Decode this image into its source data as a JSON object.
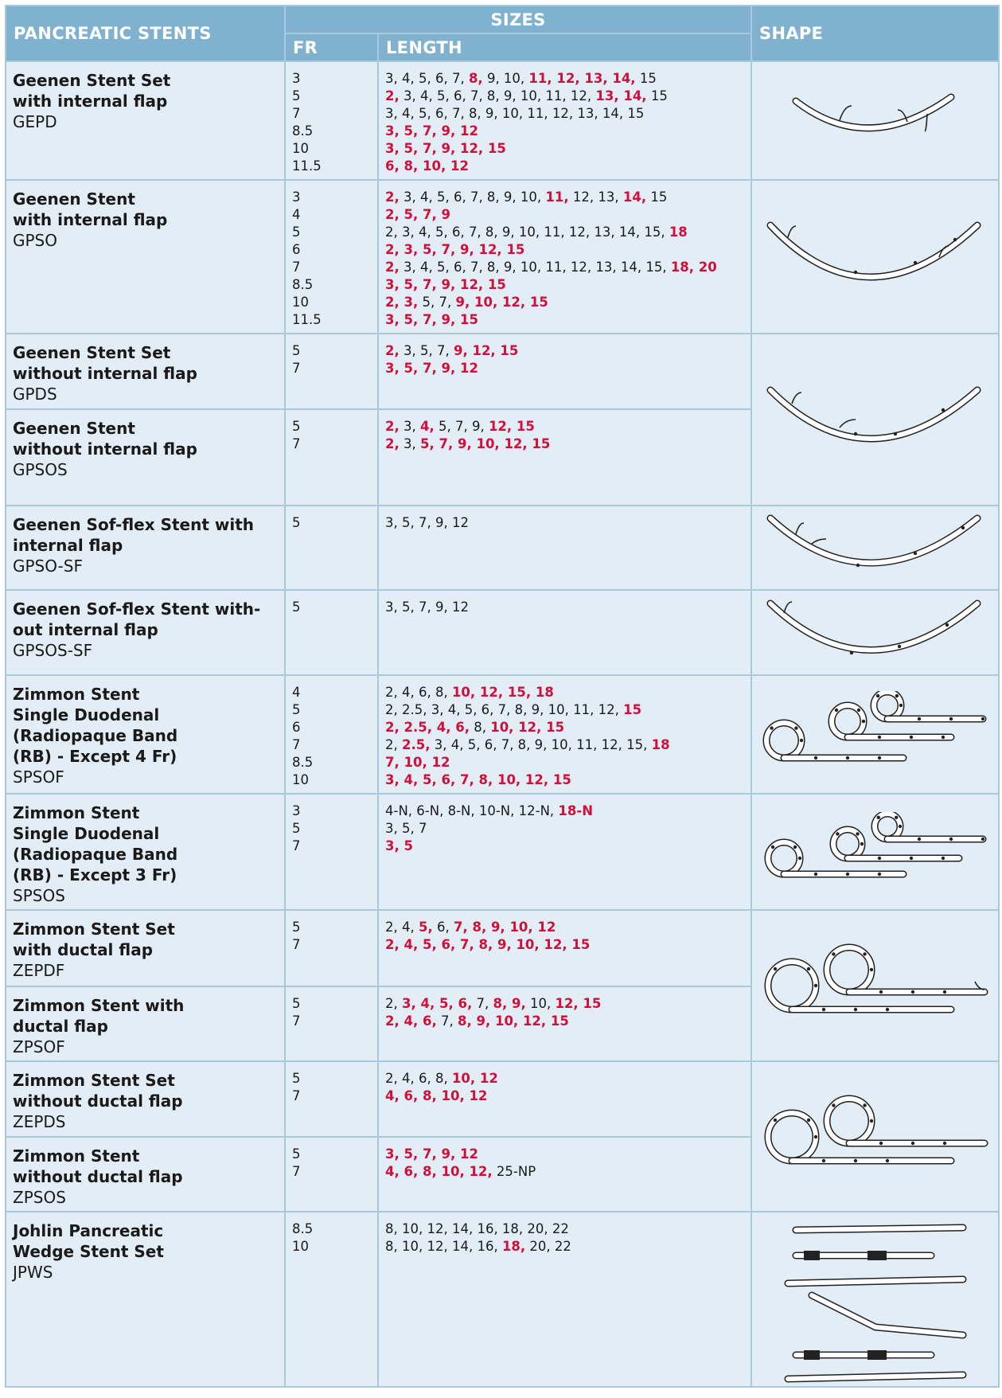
{
  "header": {
    "title": "PANCREATIC STENTS",
    "sizes": "SIZES",
    "fr": "FR",
    "length": "LENGTH",
    "shape": "SHAPE"
  },
  "rows": [
    {
      "name": [
        "Geenen Stent Set",
        "with internal flap"
      ],
      "code": "GEPD",
      "fr": [
        "3",
        "5",
        "7",
        "8.5",
        "10",
        "11.5"
      ],
      "lengths": [
        [
          {
            "k": "3, 4, 5, 6, 7, "
          },
          {
            "r": "8,"
          },
          {
            "k": " 9, 10, "
          },
          {
            "r": "11, 12, 13, 14,"
          },
          {
            "k": " 15"
          }
        ],
        [
          {
            "r": "2,"
          },
          {
            "k": " 3, 4, 5, 6, 7, 8, 9, 10, 11, 12, "
          },
          {
            "r": "13, 14,"
          },
          {
            "k": " 15"
          }
        ],
        [
          {
            "k": "3, 4, 5, 6, 7, 8, 9, 10, 11, 12, 13, 14, 15"
          }
        ],
        [
          {
            "r": "3, 5, 7, 9, 12"
          }
        ],
        [
          {
            "r": "3, 5, 7, 9, 12, 15"
          }
        ],
        [
          {
            "r": "6, 8, 10, 12"
          }
        ]
      ]
    },
    {
      "name": [
        "Geenen Stent",
        "with internal flap"
      ],
      "code": "GPSO",
      "fr": [
        "3",
        "4",
        "5",
        "6",
        "7",
        "8.5",
        "10",
        "11.5"
      ],
      "lengths": [
        [
          {
            "r": "2,"
          },
          {
            "k": " 3, 4, 5, 6, 7, 8, 9, 10, "
          },
          {
            "r": "11,"
          },
          {
            "k": " 12, 13, "
          },
          {
            "r": "14,"
          },
          {
            "k": " 15"
          }
        ],
        [
          {
            "r": "2, 5, 7, 9"
          }
        ],
        [
          {
            "k": "2, 3, 4, 5, 6, 7, 8, 9, 10, 11, 12, 13, 14, 15, "
          },
          {
            "r": "18"
          }
        ],
        [
          {
            "r": "2, 3, 5, 7, 9, 12, 15"
          }
        ],
        [
          {
            "r": "2,"
          },
          {
            "k": " 3, 4, 5, 6, 7, 8, 9, 10, 11, 12, 13, 14, 15, "
          },
          {
            "r": "18, 20"
          }
        ],
        [
          {
            "r": "3, 5, 7, 9, 12, 15"
          }
        ],
        [
          {
            "r": "2, 3,"
          },
          {
            "k": " 5, 7, "
          },
          {
            "r": "9, 10, 12, 15"
          }
        ],
        [
          {
            "r": "3, 5, 7, 9, 15"
          }
        ]
      ]
    },
    {
      "name": [
        "Geenen Stent Set",
        "without internal flap"
      ],
      "code": "GPDS",
      "fr": [
        "5",
        "7"
      ],
      "lengths": [
        [
          {
            "r": "2,"
          },
          {
            "k": " 3, 5, 7, "
          },
          {
            "r": "9, 12, 15"
          }
        ],
        [
          {
            "r": "3, 5, 7, 9, 12"
          }
        ]
      ]
    },
    {
      "name": [
        "Geenen Stent",
        "without internal flap"
      ],
      "code": "GPSOS",
      "fr": [
        "5",
        "7"
      ],
      "lengths": [
        [
          {
            "r": "2,"
          },
          {
            "k": " 3, "
          },
          {
            "r": "4,"
          },
          {
            "k": " 5, 7, 9, "
          },
          {
            "r": "12, 15"
          }
        ],
        [
          {
            "r": "2,"
          },
          {
            "k": " 3, "
          },
          {
            "r": "5, 7, 9, 10, 12, 15"
          }
        ]
      ]
    },
    {
      "name": [
        "Geenen Sof-flex Stent with",
        "internal flap"
      ],
      "code": "GPSO-SF",
      "fr": [
        "5"
      ],
      "lengths": [
        [
          {
            "k": "3, 5, 7, 9, 12"
          }
        ]
      ]
    },
    {
      "name": [
        "Geenen Sof-flex Stent with-",
        "out internal flap"
      ],
      "code": "GPSOS-SF",
      "fr": [
        "5"
      ],
      "lengths": [
        [
          {
            "k": "3, 5, 7, 9, 12"
          }
        ]
      ]
    },
    {
      "name": [
        "Zimmon Stent",
        "Single Duodenal",
        "(Radiopaque Band",
        "(RB) - Except 4 Fr)"
      ],
      "code": "SPSOF",
      "fr": [
        "4",
        "5",
        "6",
        "7",
        "8.5",
        "10"
      ],
      "lengths": [
        [
          {
            "k": "2, 4, 6, 8, "
          },
          {
            "r": "10, 12, 15, 18"
          }
        ],
        [
          {
            "k": "2, 2.5, 3, 4, 5, 6, 7, 8, 9, 10, 11, 12, "
          },
          {
            "r": "15"
          }
        ],
        [
          {
            "r": "2, 2.5, 4, 6,"
          },
          {
            "k": " 8, "
          },
          {
            "r": "10, 12, 15"
          }
        ],
        [
          {
            "k": "2, "
          },
          {
            "r": "2.5,"
          },
          {
            "k": " 3, 4, 5, 6, 7, 8, 9, 10, 11, 12, 15, "
          },
          {
            "r": "18"
          }
        ],
        [
          {
            "r": "7, 10, 12"
          }
        ],
        [
          {
            "r": "3, 4, 5, 6, 7, 8, 10, 12, 15"
          }
        ]
      ]
    },
    {
      "name": [
        "Zimmon Stent",
        "Single Duodenal",
        "(Radiopaque Band",
        "(RB) - Except 3 Fr)"
      ],
      "code": "SPSOS",
      "fr": [
        "3",
        "5",
        "7"
      ],
      "lengths": [
        [
          {
            "k": "4-N, 6-N, 8-N, 10-N, 12-N, "
          },
          {
            "r": "18-N"
          }
        ],
        [
          {
            "k": "3, 5, 7"
          }
        ],
        [
          {
            "r": "3, 5"
          }
        ]
      ]
    },
    {
      "name": [
        "Zimmon Stent Set",
        "with ductal flap"
      ],
      "code": "ZEPDF",
      "fr": [
        "5",
        "7"
      ],
      "lengths": [
        [
          {
            "k": "2, 4, "
          },
          {
            "r": "5,"
          },
          {
            "k": " 6, "
          },
          {
            "r": "7, 8, 9, 10, 12"
          }
        ],
        [
          {
            "r": "2, 4, 5, 6, 7, 8, 9, 10, 12, 15"
          }
        ]
      ]
    },
    {
      "name": [
        "Zimmon Stent with",
        "ductal flap"
      ],
      "code": "ZPSOF",
      "fr": [
        "5",
        "7"
      ],
      "lengths": [
        [
          {
            "k": "2, "
          },
          {
            "r": "3, 4, 5, 6,"
          },
          {
            "k": " 7, "
          },
          {
            "r": "8, 9,"
          },
          {
            "k": " 10, "
          },
          {
            "r": "12, 15"
          }
        ],
        [
          {
            "r": "2, 4, 6,"
          },
          {
            "k": " 7, "
          },
          {
            "r": "8, 9, 10, 12, 15"
          }
        ]
      ]
    },
    {
      "name": [
        "Zimmon Stent Set",
        "without ductal flap"
      ],
      "code": "ZEPDS",
      "fr": [
        "5",
        "7"
      ],
      "lengths": [
        [
          {
            "k": "2, 4, 6, 8, "
          },
          {
            "r": "10, 12"
          }
        ],
        [
          {
            "r": "4, 6, 8, 10, 12"
          }
        ]
      ]
    },
    {
      "name": [
        "Zimmon Stent",
        "without ductal flap"
      ],
      "code": "ZPSOS",
      "fr": [
        "5",
        "7"
      ],
      "lengths": [
        [
          {
            "r": "3, 5, 7, 9, 12"
          }
        ],
        [
          {
            "r": "4, 6, 8, 10, 12,"
          },
          {
            "k": " 25-NP"
          }
        ]
      ]
    },
    {
      "name": [
        "Johlin Pancreatic",
        "Wedge Stent Set"
      ],
      "code": "JPWS",
      "fr": [
        "8.5",
        "10"
      ],
      "lengths": [
        [
          {
            "k": "8, 10, 12, 14, 16, 18, 20, 22"
          }
        ],
        [
          {
            "k": "8, 10, 12, 14, 16, "
          },
          {
            "r": "18,"
          },
          {
            "k": " 20, 22"
          }
        ]
      ]
    }
  ]
}
